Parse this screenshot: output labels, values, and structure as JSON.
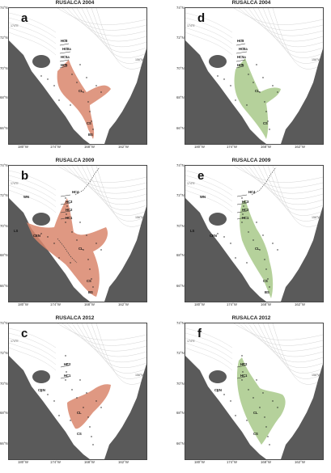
{
  "panels": [
    {
      "letter": "a",
      "title": "RUSALCA 2004",
      "fill": "#d9866c",
      "labels": {
        "hc3": "HC3",
        "hc2a": "HC2a",
        "hc1a": "HC1a",
        "hc5": "HC5",
        "cl": "CL",
        "cs": "CS",
        "bs": "BS"
      }
    },
    {
      "letter": "d",
      "title": "RUSALCA 2004",
      "fill": "#a8c98a",
      "labels": {
        "hc3": "HC3",
        "hc2a": "HC2a",
        "hc1a": "HC1a",
        "hc5": "HC5",
        "cl": "CL",
        "cs": "CS"
      }
    },
    {
      "letter": "b",
      "title": "RUSALCA 2009",
      "fill": "#d9866c",
      "labels": {
        "hc4": "HC4",
        "hc3": "HC3",
        "hc2": "HC2",
        "hc1": "HC1",
        "wn": "WN",
        "ls": "LS",
        "cen": "CEN",
        "cl": "CL",
        "cs": "CS",
        "bs": "BS"
      }
    },
    {
      "letter": "e",
      "title": "RUSALCA 2009",
      "fill": "#a8c98a",
      "labels": {
        "hc4": "HC4",
        "hc3": "HC3",
        "hc2": "HC2",
        "hc1": "HC1",
        "wn": "WN",
        "ls": "LS",
        "cen": "CEN",
        "cl": "CL",
        "cs": "CS",
        "bs": "BS"
      }
    },
    {
      "letter": "c",
      "title": "RUSALCA 2012",
      "fill": "#d9866c",
      "labels": {
        "hc2": "HC2",
        "hc1": "HC1",
        "cen": "CEN",
        "cl": "CL",
        "cs": "CS"
      }
    },
    {
      "letter": "f",
      "title": "RUSALCA 2012",
      "fill": "#a8c98a",
      "labels": {
        "hc2": "HC2",
        "hc1": "HC1",
        "cen": "CEN",
        "cl": "CL",
        "cs": "CS"
      }
    }
  ],
  "axes": {
    "x": [
      "180°W",
      "174°W",
      "168°W",
      "162°W"
    ],
    "y": [
      "74°N",
      "72°N",
      "70°N",
      "68°N",
      "66°N"
    ],
    "grid_174e": "174°E",
    "grid_156w": "156°W"
  }
}
